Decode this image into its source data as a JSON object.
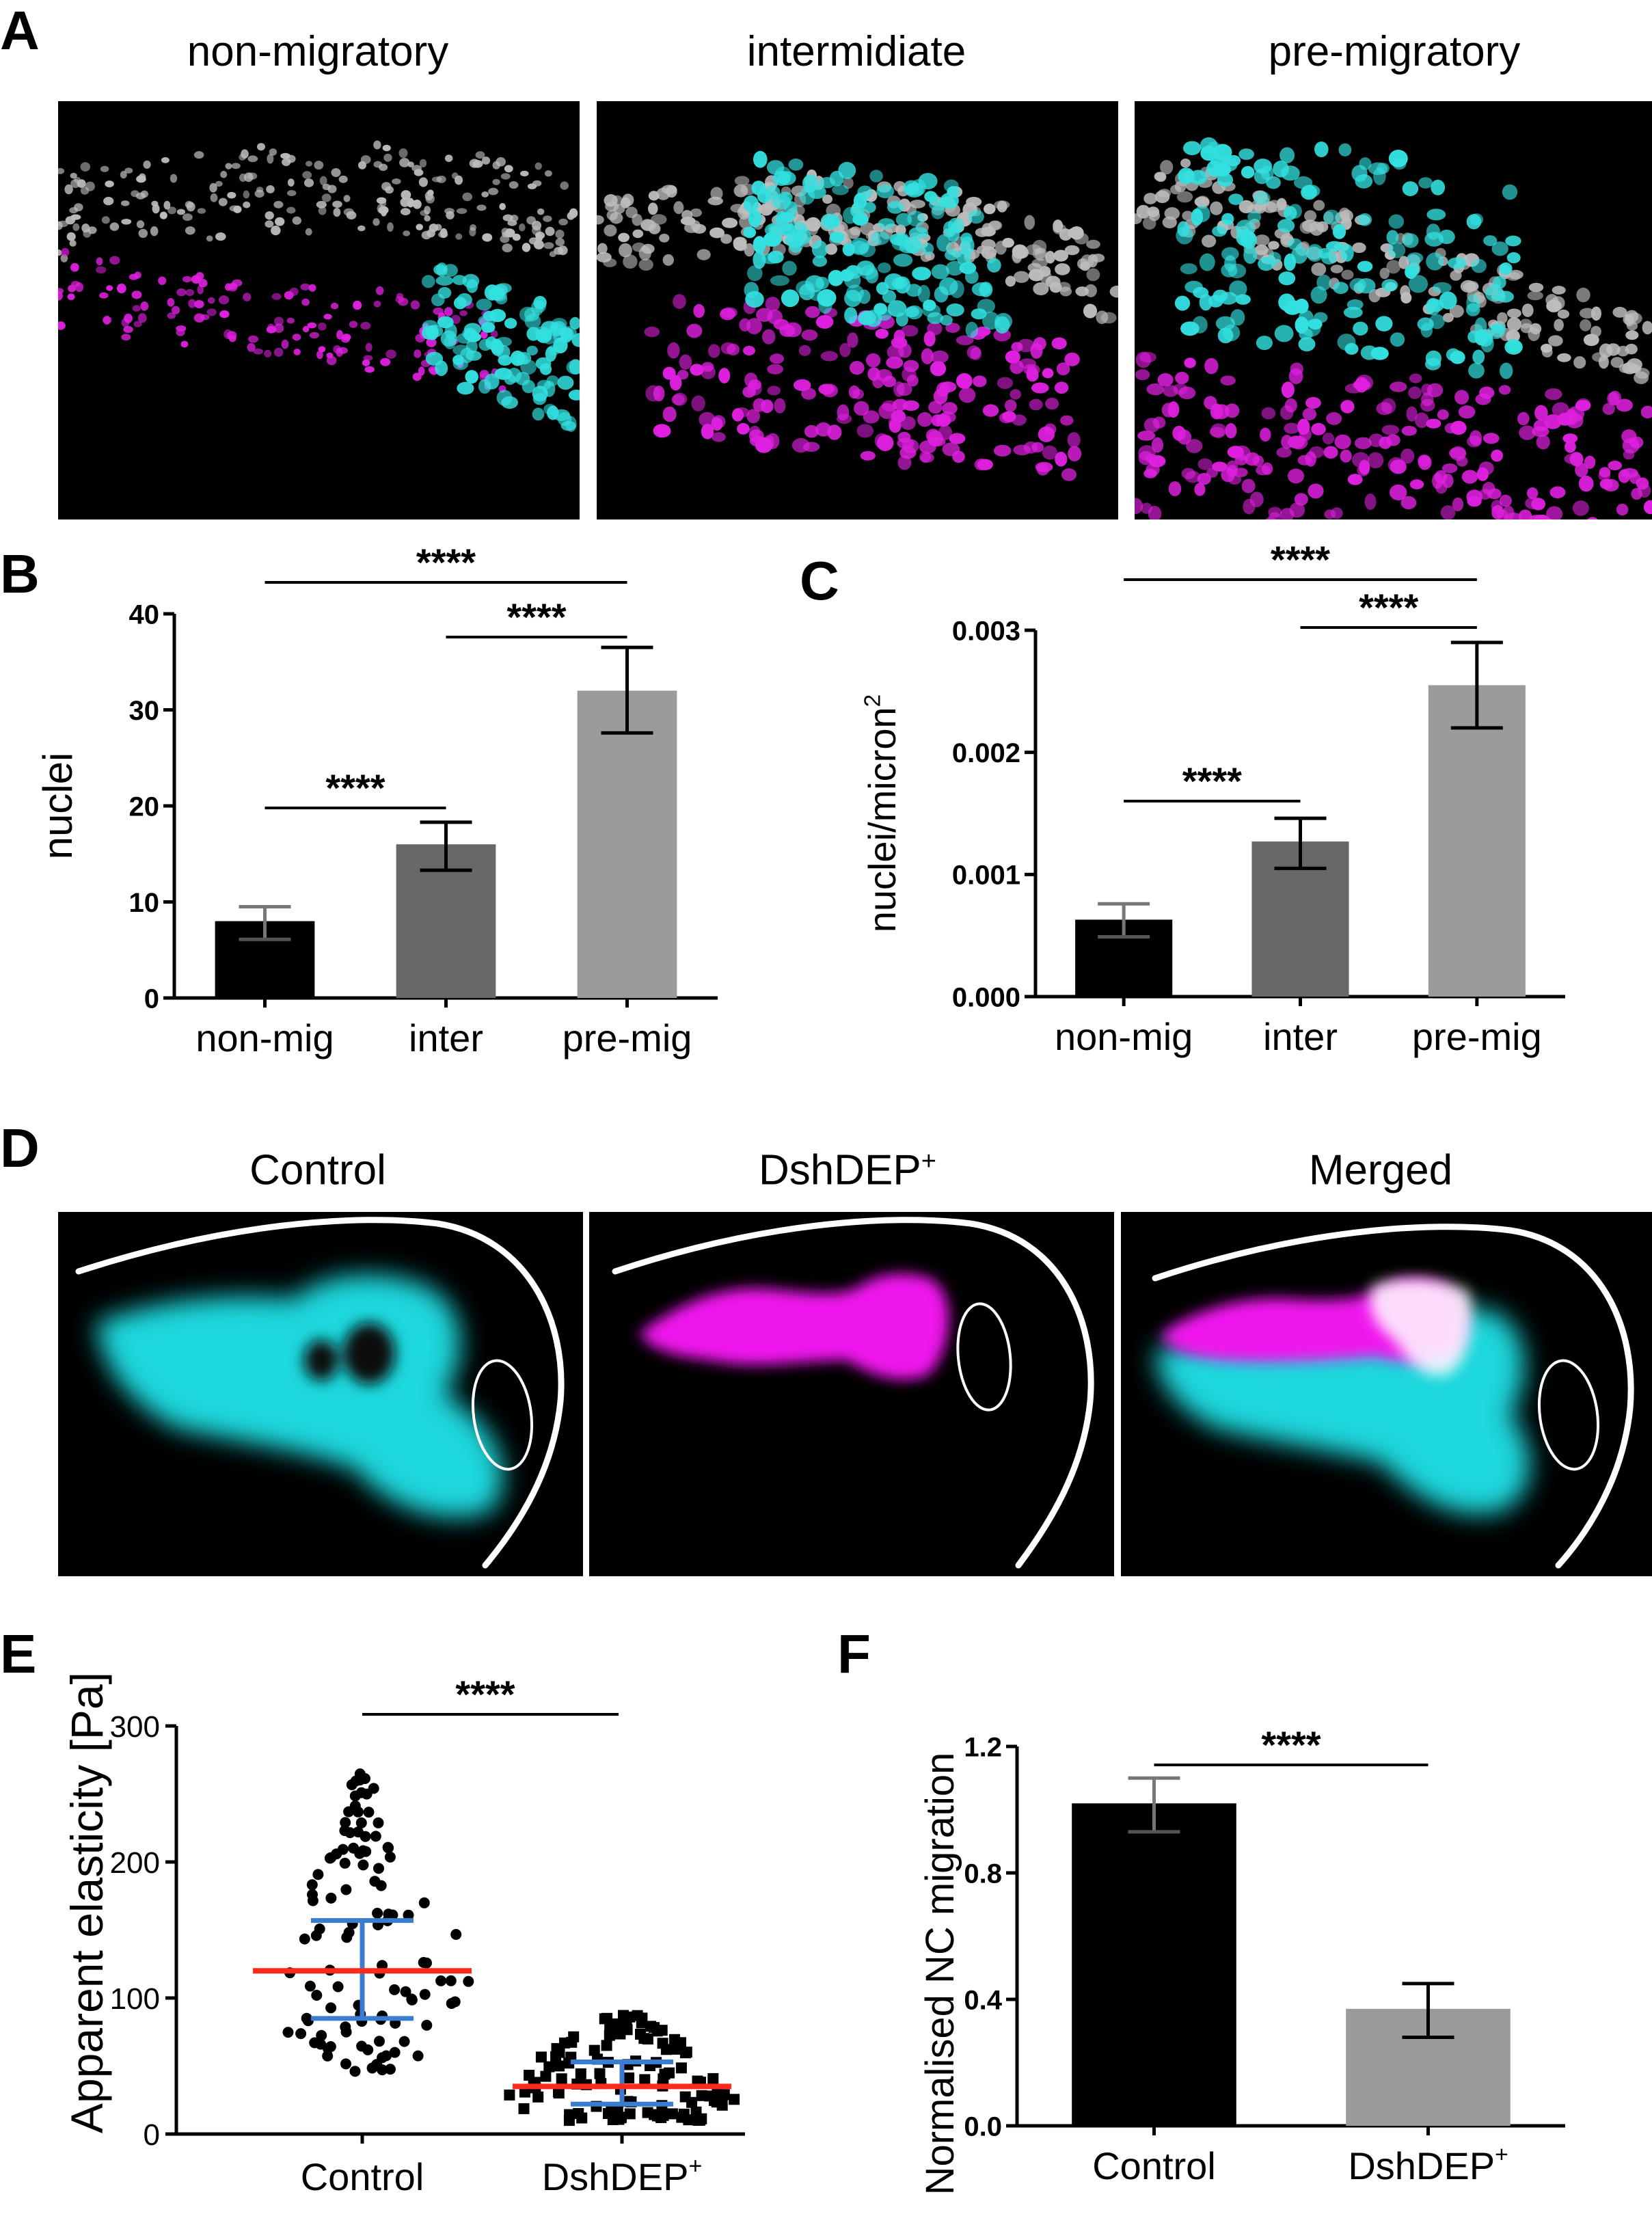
{
  "panels": {
    "A": {
      "letter": "A",
      "images": [
        {
          "title": "non-migratory",
          "stage": "non-migratory"
        },
        {
          "title": "intermidiate",
          "stage": "intermediate"
        },
        {
          "title": "pre-migratory",
          "stage": "pre-migratory"
        }
      ],
      "colors": {
        "background": "#000000",
        "cyan": "#33e0e0",
        "magenta": "#e020e0",
        "gray": "#bdbdbd"
      }
    },
    "B": {
      "letter": "B"
    },
    "C": {
      "letter": "C"
    },
    "D": {
      "letter": "D",
      "images": [
        {
          "title": "Control",
          "title_sup": ""
        },
        {
          "title": "DshDEP",
          "title_sup": "+"
        },
        {
          "title": "Merged",
          "title_sup": ""
        }
      ]
    },
    "E": {
      "letter": "E"
    },
    "F": {
      "letter": "F"
    }
  },
  "chart_data": [
    {
      "panel": "B",
      "type": "bar",
      "categories": [
        "non-mig",
        "inter",
        "pre-mig"
      ],
      "values": [
        8,
        16,
        32
      ],
      "error": [
        [
          6.1,
          9.5
        ],
        [
          13.3,
          18.3
        ],
        [
          27.6,
          36.5
        ]
      ],
      "colors": [
        "#000000",
        "#686868",
        "#9b9b9b"
      ],
      "ylabel": "nuclei",
      "ylim": [
        0,
        40
      ],
      "yticks": [
        "0",
        "10",
        "20",
        "30",
        "40"
      ],
      "significance": [
        {
          "from": 0,
          "to": 1,
          "label": "****"
        },
        {
          "from": 1,
          "to": 2,
          "label": "****"
        },
        {
          "from": 0,
          "to": 2,
          "label": "****"
        }
      ]
    },
    {
      "panel": "C",
      "type": "bar",
      "categories": [
        "non-mig",
        "inter",
        "pre-mig"
      ],
      "values": [
        0.00063,
        0.00127,
        0.00255
      ],
      "error": [
        [
          0.00049,
          0.00076
        ],
        [
          0.00105,
          0.00146
        ],
        [
          0.0022,
          0.0029
        ]
      ],
      "colors": [
        "#000000",
        "#686868",
        "#9b9b9b"
      ],
      "ylabel": "nuclei/micron",
      "ylabel_sup": "2",
      "ylim": [
        0,
        0.003
      ],
      "yticks": [
        "0.000",
        "0.001",
        "0.002",
        "0.003"
      ],
      "significance": [
        {
          "from": 0,
          "to": 1,
          "label": "****"
        },
        {
          "from": 1,
          "to": 2,
          "label": "****"
        },
        {
          "from": 0,
          "to": 2,
          "label": "****"
        }
      ]
    },
    {
      "panel": "E",
      "type": "scatter",
      "categories": [
        "Control",
        "DshDEP"
      ],
      "category_sup": [
        "",
        "+"
      ],
      "series": [
        {
          "category": "Control",
          "mean": 120,
          "sd_low": 85,
          "sd_high": 157,
          "n": 110,
          "min": 46,
          "max": 265,
          "marker": "circle"
        },
        {
          "category": "DshDEP",
          "mean": 35,
          "sd_low": 22,
          "sd_high": 53,
          "n": 120,
          "min": 10,
          "max": 88,
          "marker": "square"
        }
      ],
      "ylabel": "Apparent elasticity [Pa]",
      "ylim": [
        0,
        300
      ],
      "yticks": [
        "0",
        "100",
        "200",
        "300"
      ],
      "mean_color": "#ff2a1a",
      "sd_color": "#3a7ccf",
      "significance": [
        {
          "from": 0,
          "to": 1,
          "label": "****"
        }
      ]
    },
    {
      "panel": "F",
      "type": "bar",
      "categories": [
        "Control",
        "DshDEP"
      ],
      "category_sup": [
        "",
        "+"
      ],
      "values": [
        1.02,
        0.37
      ],
      "error": [
        [
          0.93,
          1.1
        ],
        [
          0.28,
          0.45
        ]
      ],
      "colors": [
        "#000000",
        "#9b9b9b"
      ],
      "ylabel": "Normalised NC migration",
      "ylim": [
        0,
        1.2
      ],
      "yticks": [
        "0.0",
        "0.4",
        "0.8",
        "1.2"
      ],
      "significance": [
        {
          "from": 0,
          "to": 1,
          "label": "****"
        }
      ]
    }
  ]
}
